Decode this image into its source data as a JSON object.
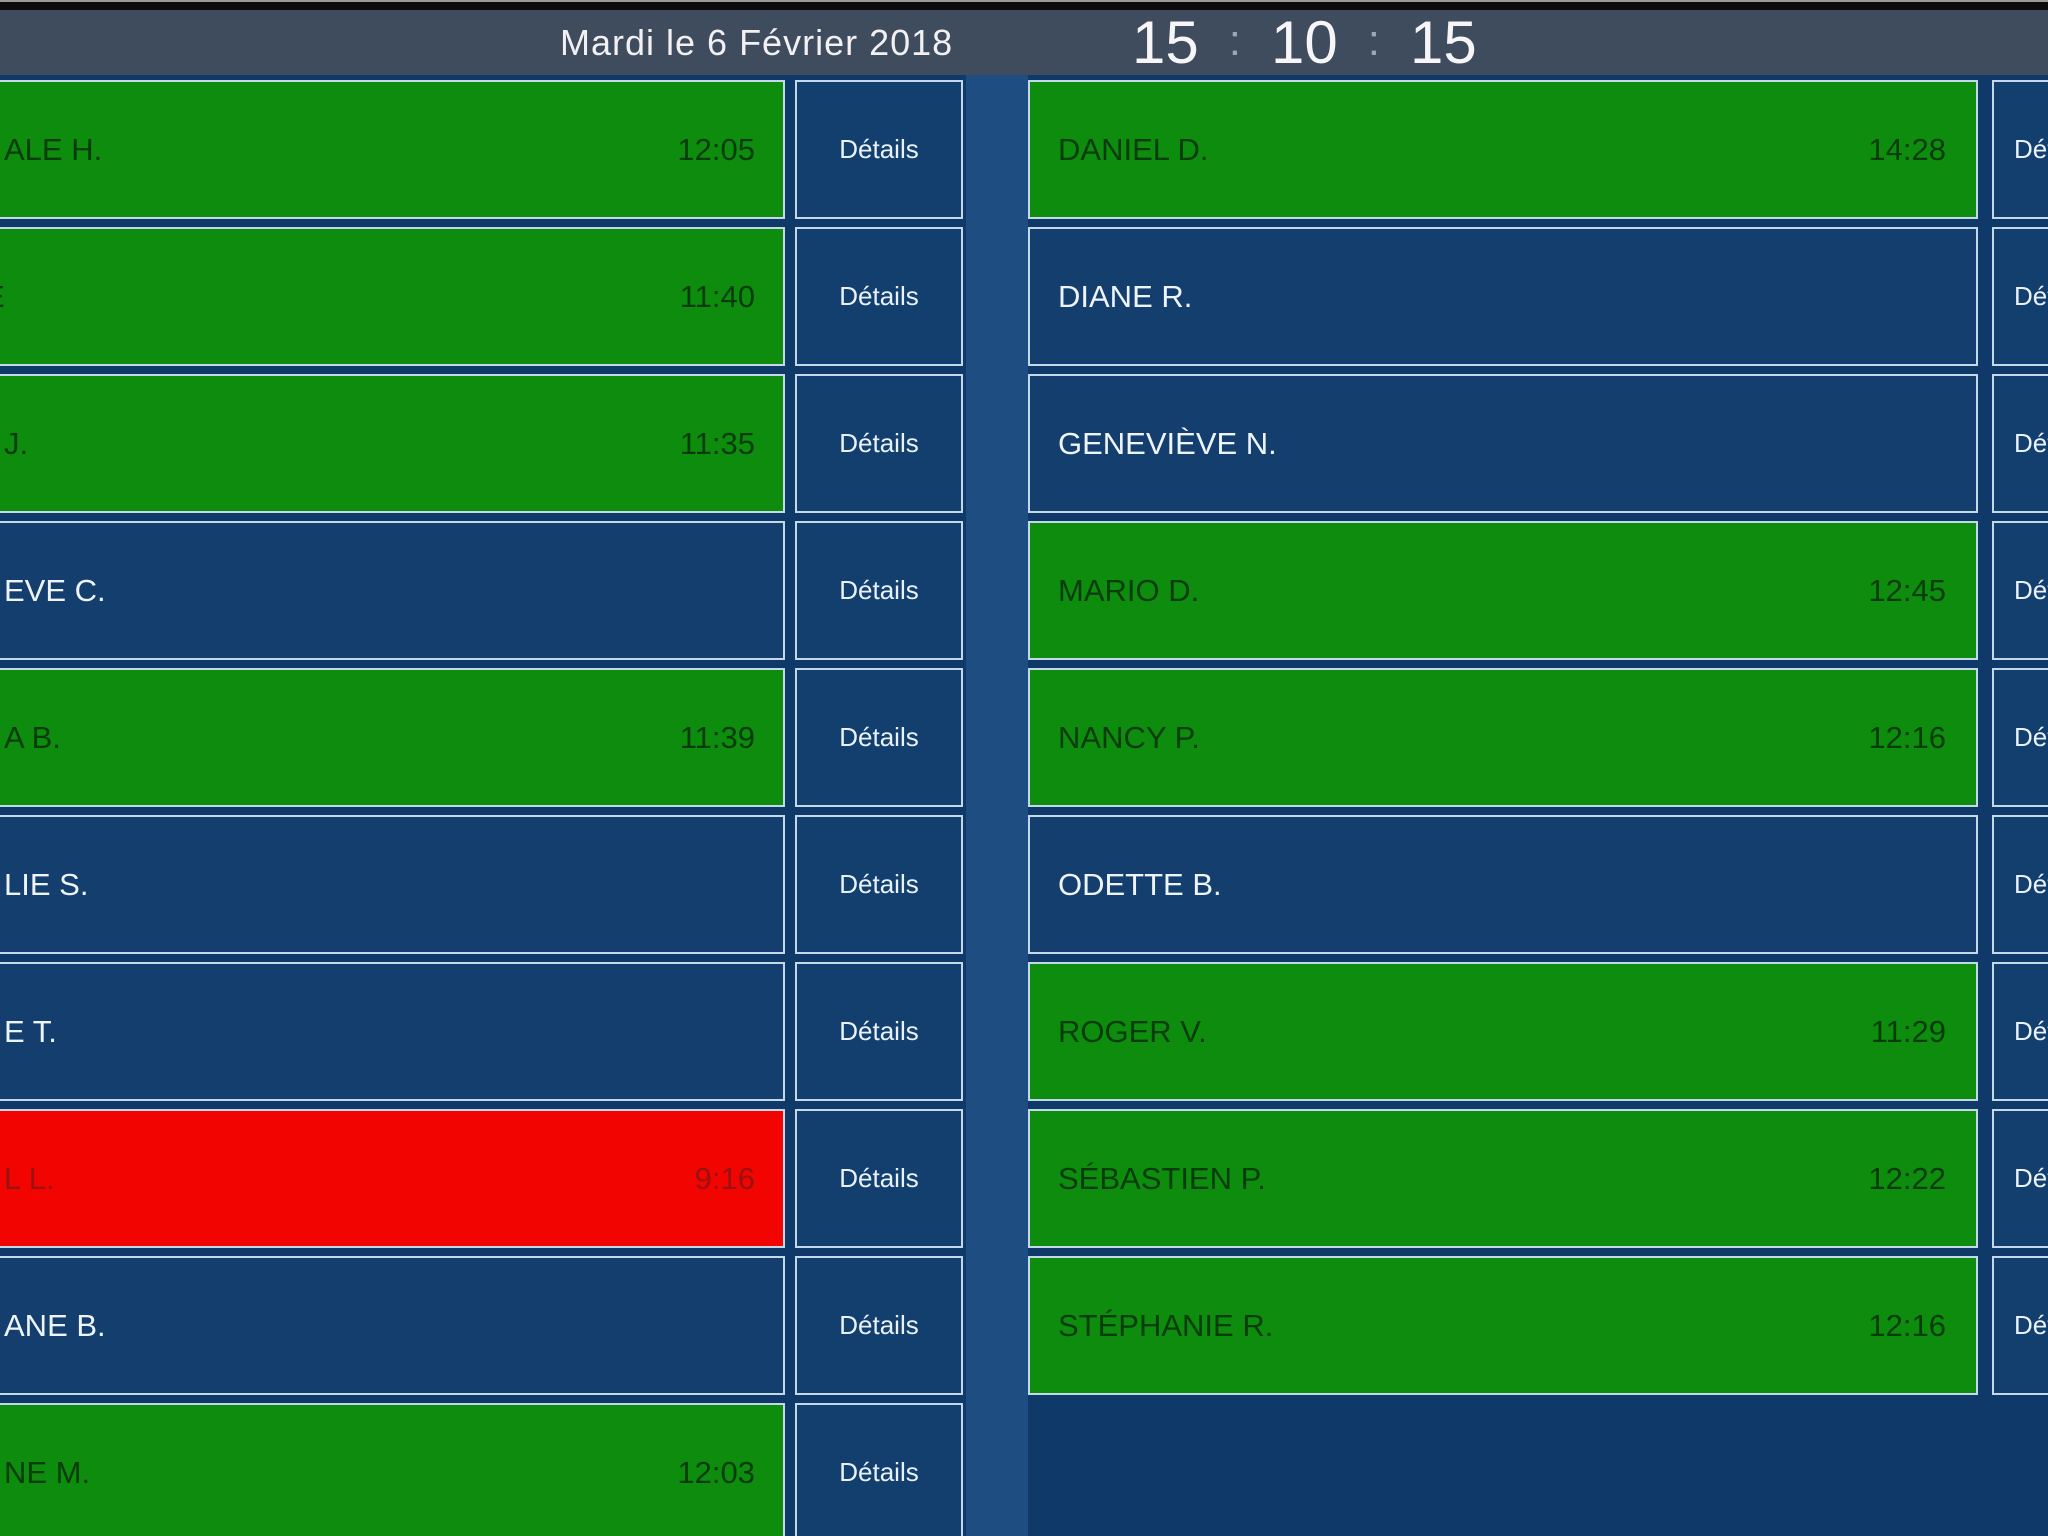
{
  "header": {
    "date": "Mardi le 6 Février 2018",
    "clock": {
      "hours": "15",
      "minutes": "10",
      "seconds": "15",
      "separator": ":"
    }
  },
  "board": {
    "details_label": "Détails",
    "status_colors": {
      "green": {
        "bg": "#0d8c0d",
        "fg": "#083c0c"
      },
      "blue": {
        "bg": "#133e6d",
        "fg": "#eef4fb"
      },
      "red": {
        "bg": "#f20500",
        "fg": "#991111"
      }
    },
    "left_rows": [
      {
        "name": "ALE H.",
        "time": "12:05",
        "status": "green"
      },
      {
        "name": "E",
        "time": "11:40",
        "status": "green",
        "sliver": true
      },
      {
        "name": "J.",
        "time": "11:35",
        "status": "green"
      },
      {
        "name": "EVE C.",
        "time": "",
        "status": "blue"
      },
      {
        "name": "A B.",
        "time": "11:39",
        "status": "green"
      },
      {
        "name": "LIE S.",
        "time": "",
        "status": "blue"
      },
      {
        "name": "E T.",
        "time": "",
        "status": "blue"
      },
      {
        "name": "L L.",
        "time": "9:16",
        "status": "red"
      },
      {
        "name": "ANE B.",
        "time": "",
        "status": "blue"
      },
      {
        "name": "NE M.",
        "time": "12:03",
        "status": "green"
      }
    ],
    "right_rows": [
      {
        "name": "DANIEL D.",
        "time": "14:28",
        "status": "green"
      },
      {
        "name": "DIANE R.",
        "time": "",
        "status": "blue"
      },
      {
        "name": "GENEVIÈVE N.",
        "time": "",
        "status": "blue"
      },
      {
        "name": "MARIO D.",
        "time": "12:45",
        "status": "green"
      },
      {
        "name": "NANCY P.",
        "time": "12:16",
        "status": "green"
      },
      {
        "name": "ODETTE B.",
        "time": "",
        "status": "blue"
      },
      {
        "name": "ROGER V.",
        "time": "11:29",
        "status": "green"
      },
      {
        "name": "SÉBASTIEN P.",
        "time": "12:22",
        "status": "green"
      },
      {
        "name": "STÉPHANIE R.",
        "time": "12:16",
        "status": "green"
      }
    ]
  }
}
